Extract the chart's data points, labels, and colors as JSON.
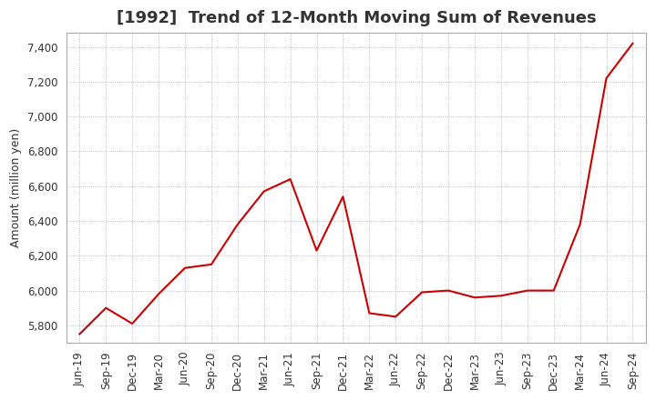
{
  "title": "[1992]  Trend of 12-Month Moving Sum of Revenues",
  "ylabel": "Amount (million yen)",
  "x_labels": [
    "Jun-19",
    "Sep-19",
    "Dec-19",
    "Mar-20",
    "Jun-20",
    "Sep-20",
    "Dec-20",
    "Mar-21",
    "Jun-21",
    "Sep-21",
    "Dec-21",
    "Mar-22",
    "Jun-22",
    "Sep-22",
    "Dec-22",
    "Mar-23",
    "Jun-23",
    "Sep-23",
    "Dec-23",
    "Mar-24",
    "Jun-24",
    "Sep-24"
  ],
  "values": [
    5750,
    5900,
    5810,
    5980,
    6130,
    6150,
    6380,
    6570,
    6640,
    6230,
    6540,
    5870,
    5850,
    5990,
    6000,
    5960,
    5970,
    6000,
    6000,
    6380,
    7220,
    7420
  ],
  "ylim": [
    5700,
    7480
  ],
  "yticks": [
    5800,
    6000,
    6200,
    6400,
    6600,
    6800,
    7000,
    7200,
    7400
  ],
  "line_color": "#cc0000",
  "bg_color": "#ffffff",
  "plot_bg_color": "#ffffff",
  "grid_color": "#aaaaaa",
  "title_fontsize": 13,
  "label_fontsize": 9,
  "tick_fontsize": 8.5
}
